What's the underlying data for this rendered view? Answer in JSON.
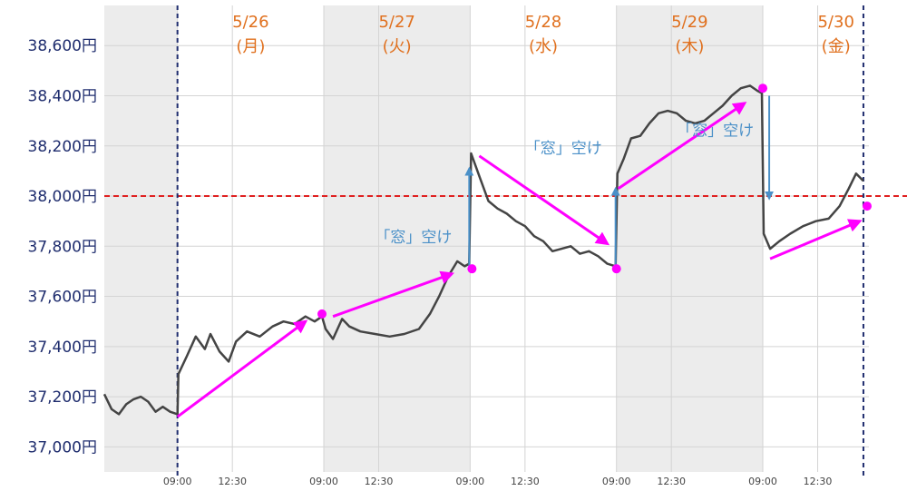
{
  "chart_data": {
    "type": "line",
    "title": "",
    "xlabel": "",
    "ylabel": "",
    "ylim": [
      36900,
      38760
    ],
    "yticks": [
      {
        "value": 38600,
        "label": "38,600円"
      },
      {
        "value": 38400,
        "label": "38,400円"
      },
      {
        "value": 38200,
        "label": "38,200円"
      },
      {
        "value": 38000,
        "label": "38,000円"
      },
      {
        "value": 37800,
        "label": "37,800円"
      },
      {
        "value": 37600,
        "label": "37,600円"
      },
      {
        "value": 37400,
        "label": "37,400円"
      },
      {
        "value": 37200,
        "label": "37,200円"
      },
      {
        "value": 37000,
        "label": "37,000円"
      }
    ],
    "xrange": [
      0,
      41.8
    ],
    "xticks": [
      {
        "value": 4,
        "label": "09:00"
      },
      {
        "value": 7,
        "label": "12:30"
      },
      {
        "value": 12,
        "label": "09:00"
      },
      {
        "value": 15,
        "label": "12:30"
      },
      {
        "value": 20,
        "label": "09:00"
      },
      {
        "value": 23,
        "label": "12:30"
      },
      {
        "value": 28,
        "label": "09:00"
      },
      {
        "value": 31,
        "label": "12:30"
      },
      {
        "value": 36,
        "label": "09:00"
      },
      {
        "value": 39,
        "label": "12:30"
      }
    ],
    "days": [
      {
        "date": "5/26",
        "weekday": "(月)",
        "shaded": false
      },
      {
        "date": "5/27",
        "weekday": "(火)",
        "shaded": true
      },
      {
        "date": "5/28",
        "weekday": "(水)",
        "shaded": false
      },
      {
        "date": "5/29",
        "weekday": "(木)",
        "shaded": true
      },
      {
        "date": "5/30",
        "weekday": "(金)",
        "shaded": false
      }
    ],
    "shaded_regions": [
      [
        0,
        4
      ],
      [
        12,
        20
      ],
      [
        28,
        36
      ]
    ],
    "reference_line": {
      "value": 38000,
      "color": "#e02020"
    },
    "vertical_markers": [
      4,
      41.5
    ],
    "series": [
      {
        "values": [
          {
            "x": 0.0,
            "y": 37210
          },
          {
            "x": 0.4,
            "y": 37150
          },
          {
            "x": 0.8,
            "y": 37130
          },
          {
            "x": 1.2,
            "y": 37170
          },
          {
            "x": 1.6,
            "y": 37190
          },
          {
            "x": 2.0,
            "y": 37200
          },
          {
            "x": 2.4,
            "y": 37180
          },
          {
            "x": 2.8,
            "y": 37140
          },
          {
            "x": 3.2,
            "y": 37160
          },
          {
            "x": 3.6,
            "y": 37140
          },
          {
            "x": 4.0,
            "y": 37130
          },
          {
            "x": 4.05,
            "y": 37290
          },
          {
            "x": 4.5,
            "y": 37360
          },
          {
            "x": 5.0,
            "y": 37440
          },
          {
            "x": 5.5,
            "y": 37390
          },
          {
            "x": 5.8,
            "y": 37450
          },
          {
            "x": 6.3,
            "y": 37380
          },
          {
            "x": 6.8,
            "y": 37340
          },
          {
            "x": 7.2,
            "y": 37420
          },
          {
            "x": 7.8,
            "y": 37460
          },
          {
            "x": 8.5,
            "y": 37440
          },
          {
            "x": 9.2,
            "y": 37480
          },
          {
            "x": 9.8,
            "y": 37500
          },
          {
            "x": 10.4,
            "y": 37490
          },
          {
            "x": 11.0,
            "y": 37520
          },
          {
            "x": 11.5,
            "y": 37500
          },
          {
            "x": 11.9,
            "y": 37520
          },
          {
            "x": 12.1,
            "y": 37470
          },
          {
            "x": 12.5,
            "y": 37430
          },
          {
            "x": 13.0,
            "y": 37510
          },
          {
            "x": 13.4,
            "y": 37480
          },
          {
            "x": 14.0,
            "y": 37460
          },
          {
            "x": 14.8,
            "y": 37450
          },
          {
            "x": 15.6,
            "y": 37440
          },
          {
            "x": 16.4,
            "y": 37450
          },
          {
            "x": 17.2,
            "y": 37470
          },
          {
            "x": 17.8,
            "y": 37530
          },
          {
            "x": 18.3,
            "y": 37600
          },
          {
            "x": 18.8,
            "y": 37680
          },
          {
            "x": 19.3,
            "y": 37740
          },
          {
            "x": 19.7,
            "y": 37720
          },
          {
            "x": 19.95,
            "y": 37730
          },
          {
            "x": 20.05,
            "y": 38170
          },
          {
            "x": 20.5,
            "y": 38080
          },
          {
            "x": 21.0,
            "y": 37980
          },
          {
            "x": 21.5,
            "y": 37950
          },
          {
            "x": 22.0,
            "y": 37930
          },
          {
            "x": 22.5,
            "y": 37900
          },
          {
            "x": 23.0,
            "y": 37880
          },
          {
            "x": 23.5,
            "y": 37840
          },
          {
            "x": 24.0,
            "y": 37820
          },
          {
            "x": 24.5,
            "y": 37780
          },
          {
            "x": 25.0,
            "y": 37790
          },
          {
            "x": 25.5,
            "y": 37800
          },
          {
            "x": 26.0,
            "y": 37770
          },
          {
            "x": 26.5,
            "y": 37780
          },
          {
            "x": 27.0,
            "y": 37760
          },
          {
            "x": 27.5,
            "y": 37730
          },
          {
            "x": 27.95,
            "y": 37720
          },
          {
            "x": 28.05,
            "y": 38090
          },
          {
            "x": 28.4,
            "y": 38150
          },
          {
            "x": 28.8,
            "y": 38230
          },
          {
            "x": 29.3,
            "y": 38240
          },
          {
            "x": 29.8,
            "y": 38290
          },
          {
            "x": 30.3,
            "y": 38330
          },
          {
            "x": 30.8,
            "y": 38340
          },
          {
            "x": 31.3,
            "y": 38330
          },
          {
            "x": 31.8,
            "y": 38300
          },
          {
            "x": 32.3,
            "y": 38290
          },
          {
            "x": 32.8,
            "y": 38300
          },
          {
            "x": 33.3,
            "y": 38330
          },
          {
            "x": 33.8,
            "y": 38360
          },
          {
            "x": 34.3,
            "y": 38400
          },
          {
            "x": 34.8,
            "y": 38430
          },
          {
            "x": 35.3,
            "y": 38440
          },
          {
            "x": 35.7,
            "y": 38420
          },
          {
            "x": 35.95,
            "y": 38410
          },
          {
            "x": 36.05,
            "y": 37850
          },
          {
            "x": 36.4,
            "y": 37790
          },
          {
            "x": 36.9,
            "y": 37820
          },
          {
            "x": 37.5,
            "y": 37850
          },
          {
            "x": 38.2,
            "y": 37880
          },
          {
            "x": 38.9,
            "y": 37900
          },
          {
            "x": 39.6,
            "y": 37910
          },
          {
            "x": 40.2,
            "y": 37960
          },
          {
            "x": 40.7,
            "y": 38030
          },
          {
            "x": 41.1,
            "y": 38090
          },
          {
            "x": 41.5,
            "y": 38060
          }
        ]
      }
    ],
    "trend_arrows": [
      {
        "from": [
          4.0,
          37120
        ],
        "to": [
          11.0,
          37500
        ]
      },
      {
        "from": [
          12.5,
          37520
        ],
        "to": [
          19.0,
          37690
        ]
      },
      {
        "from": [
          20.5,
          38160
        ],
        "to": [
          27.5,
          37810
        ]
      },
      {
        "from": [
          28.1,
          38030
        ],
        "to": [
          35.0,
          38370
        ]
      },
      {
        "from": [
          36.4,
          37750
        ],
        "to": [
          41.3,
          37900
        ]
      }
    ],
    "gap_arrows": [
      {
        "x": 19.95,
        "from": 37720,
        "to": 38110,
        "direction": "up"
      },
      {
        "x": 27.95,
        "from": 37720,
        "to": 38030,
        "direction": "up"
      },
      {
        "x": 36.35,
        "from": 38400,
        "to": 37990,
        "direction": "down"
      }
    ],
    "markers": [
      {
        "x": 11.9,
        "y": 37530
      },
      {
        "x": 20.1,
        "y": 37710
      },
      {
        "x": 28.0,
        "y": 37710
      },
      {
        "x": 36.0,
        "y": 38430
      },
      {
        "x": 41.7,
        "y": 37960
      }
    ],
    "annotations": [
      {
        "text": "「窓」空け",
        "x": 16.9,
        "y": 37815
      },
      {
        "text": "「窓」空け",
        "x": 25.1,
        "y": 38170
      },
      {
        "text": "「窓」空け",
        "x": 33.4,
        "y": 38240
      }
    ],
    "colors": {
      "price": "#444444",
      "trend": "#ff00ff",
      "gap": "#4a90c8",
      "day_label": "#e0701e",
      "y_tick": "#1f2d6e",
      "reference": "#e02020",
      "vertical_marker": "#1f2d6e",
      "shade": "#ececec"
    },
    "grid": true
  }
}
